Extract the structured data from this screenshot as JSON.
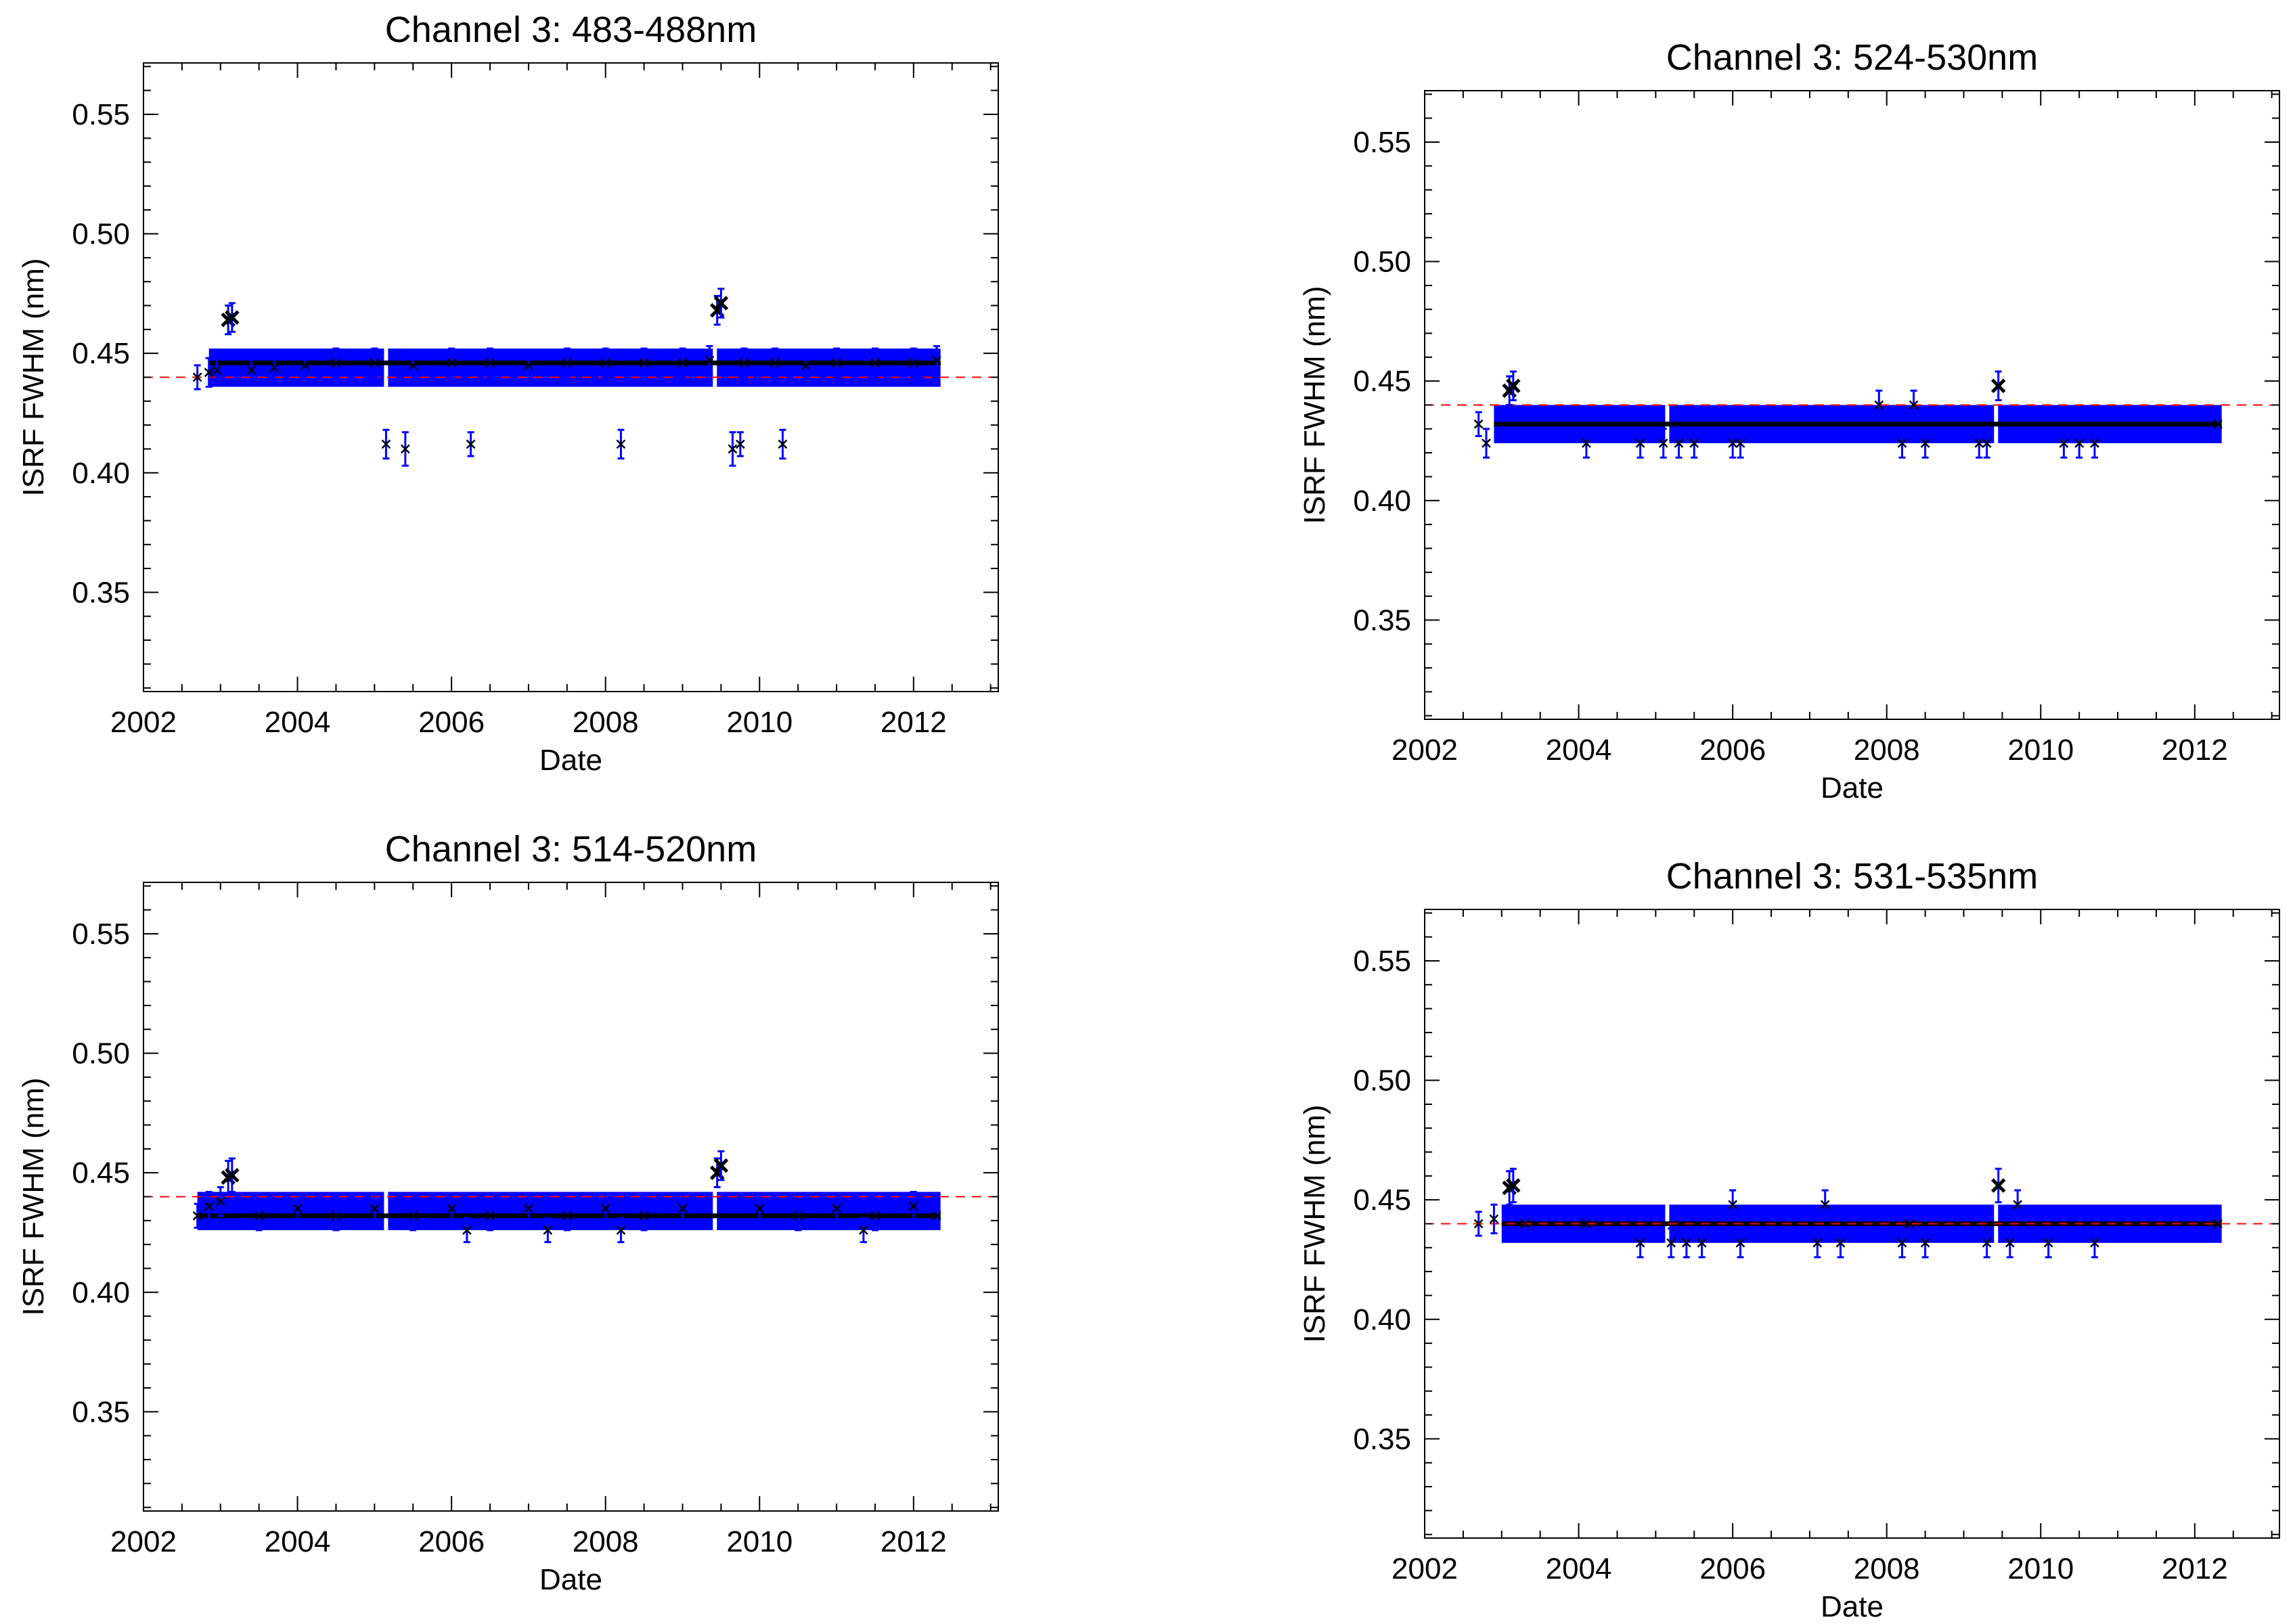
{
  "figure": {
    "colors": {
      "errorbar": "#0000ff",
      "marker": "#000000",
      "reference_line": "#ff0000",
      "frame": "#000000",
      "background": "#ffffff"
    }
  },
  "chart_data": [
    {
      "type": "scatter",
      "title": "Channel 3: 483-488nm",
      "xlabel": "Date",
      "ylabel": "ISRF FWHM (nm)",
      "xlim": [
        2002,
        2013.1
      ],
      "ylim": [
        0.3085,
        0.5715
      ],
      "xticks": [
        2002,
        2004,
        2006,
        2008,
        2010,
        2012
      ],
      "xtick_labels": [
        "2002",
        "2004",
        "2006",
        "2008",
        "2010",
        "2012"
      ],
      "yticks": [
        0.35,
        0.4,
        0.45,
        0.5,
        0.55
      ],
      "ytick_labels": [
        "0.35",
        "0.40",
        "0.45",
        "0.50",
        "0.55"
      ],
      "reference_line": 0.44,
      "band": {
        "x_start": 2002.85,
        "x_end": 2012.35,
        "y_center": 0.446,
        "y_low": 0.436,
        "y_high": 0.452
      },
      "series": [
        {
          "name": "ISRF FWHM",
          "x": [
            2002.7,
            2002.85,
            2002.95,
            2003.1,
            2003.15,
            2003.4,
            2003.7,
            2004.1,
            2004.5,
            2005.0,
            2005.5,
            2006.0,
            2006.5,
            2007.0,
            2007.5,
            2008.0,
            2008.5,
            2009.0,
            2009.35,
            2009.45,
            2009.5,
            2009.8,
            2010.2,
            2010.6,
            2011.0,
            2011.5,
            2012.0,
            2012.3,
            2005.15,
            2005.4,
            2006.25,
            2008.2,
            2009.65,
            2009.75,
            2010.3
          ],
          "y": [
            0.44,
            0.442,
            0.443,
            0.464,
            0.465,
            0.443,
            0.444,
            0.445,
            0.446,
            0.446,
            0.445,
            0.446,
            0.446,
            0.445,
            0.446,
            0.446,
            0.446,
            0.446,
            0.447,
            0.468,
            0.471,
            0.446,
            0.446,
            0.445,
            0.446,
            0.446,
            0.446,
            0.447,
            0.412,
            0.41,
            0.412,
            0.412,
            0.41,
            0.412,
            0.412
          ],
          "err": [
            0.005,
            0.006,
            0.006,
            0.006,
            0.006,
            0.006,
            0.006,
            0.006,
            0.006,
            0.006,
            0.006,
            0.006,
            0.006,
            0.006,
            0.006,
            0.006,
            0.006,
            0.006,
            0.006,
            0.006,
            0.006,
            0.006,
            0.006,
            0.006,
            0.006,
            0.006,
            0.006,
            0.006,
            0.006,
            0.007,
            0.005,
            0.006,
            0.007,
            0.005,
            0.006
          ]
        }
      ]
    },
    {
      "type": "scatter",
      "title": "Channel 3: 524-530nm",
      "xlabel": "Date",
      "ylabel": "ISRF FWHM (nm)",
      "xlim": [
        2002,
        2013.1
      ],
      "ylim": [
        0.3085,
        0.5715
      ],
      "xticks": [
        2002,
        2004,
        2006,
        2008,
        2010,
        2012
      ],
      "xtick_labels": [
        "2002",
        "2004",
        "2006",
        "2008",
        "2010",
        "2012"
      ],
      "yticks": [
        0.35,
        0.4,
        0.45,
        0.5,
        0.55
      ],
      "ytick_labels": [
        "0.35",
        "0.40",
        "0.45",
        "0.50",
        "0.55"
      ],
      "reference_line": 0.44,
      "band": {
        "x_start": 2002.9,
        "x_end": 2012.35,
        "y_center": 0.432,
        "y_low": 0.424,
        "y_high": 0.44
      },
      "series": [
        {
          "name": "ISRF FWHM",
          "x": [
            2002.7,
            2002.8,
            2003.1,
            2003.15,
            2004.1,
            2004.8,
            2005.1,
            2005.3,
            2005.5,
            2006.0,
            2006.1,
            2007.9,
            2008.2,
            2008.35,
            2008.5,
            2009.2,
            2009.3,
            2009.45,
            2010.3,
            2010.5,
            2010.7,
            2012.3
          ],
          "y": [
            0.432,
            0.424,
            0.446,
            0.448,
            0.424,
            0.424,
            0.424,
            0.424,
            0.424,
            0.424,
            0.424,
            0.44,
            0.424,
            0.44,
            0.424,
            0.424,
            0.424,
            0.448,
            0.424,
            0.424,
            0.424,
            0.432
          ],
          "err": [
            0.005,
            0.006,
            0.006,
            0.006,
            0.006,
            0.006,
            0.006,
            0.006,
            0.006,
            0.006,
            0.006,
            0.006,
            0.006,
            0.006,
            0.006,
            0.006,
            0.006,
            0.006,
            0.006,
            0.006,
            0.006,
            0.005
          ]
        }
      ]
    },
    {
      "type": "scatter",
      "title": "Channel 3: 514-520nm",
      "xlabel": "Date",
      "ylabel": "ISRF FWHM (nm)",
      "xlim": [
        2002,
        2013.1
      ],
      "ylim": [
        0.3085,
        0.5715
      ],
      "xticks": [
        2002,
        2004,
        2006,
        2008,
        2010,
        2012
      ],
      "xtick_labels": [
        "2002",
        "2004",
        "2006",
        "2008",
        "2010",
        "2012"
      ],
      "yticks": [
        0.35,
        0.4,
        0.45,
        0.5,
        0.55
      ],
      "ytick_labels": [
        "0.35",
        "0.40",
        "0.45",
        "0.50",
        "0.55"
      ],
      "reference_line": 0.44,
      "band": {
        "x_start": 2002.7,
        "x_end": 2012.35,
        "y_center": 0.432,
        "y_low": 0.426,
        "y_high": 0.442
      },
      "series": [
        {
          "name": "ISRF FWHM",
          "x": [
            2002.7,
            2002.85,
            2003.0,
            2003.1,
            2003.15,
            2003.5,
            2004.0,
            2004.5,
            2005.0,
            2005.5,
            2006.0,
            2006.5,
            2007.0,
            2007.5,
            2008.0,
            2008.5,
            2009.0,
            2009.45,
            2009.5,
            2010.0,
            2010.5,
            2011.0,
            2011.5,
            2012.0,
            2012.3,
            2006.2,
            2007.25,
            2008.2,
            2011.35
          ],
          "y": [
            0.432,
            0.436,
            0.438,
            0.448,
            0.449,
            0.432,
            0.435,
            0.432,
            0.435,
            0.432,
            0.435,
            0.432,
            0.435,
            0.432,
            0.435,
            0.432,
            0.435,
            0.45,
            0.453,
            0.435,
            0.432,
            0.435,
            0.432,
            0.436,
            0.432,
            0.426,
            0.426,
            0.426,
            0.426
          ],
          "err": [
            0.005,
            0.006,
            0.006,
            0.007,
            0.007,
            0.006,
            0.006,
            0.006,
            0.006,
            0.006,
            0.006,
            0.006,
            0.006,
            0.006,
            0.006,
            0.006,
            0.006,
            0.006,
            0.006,
            0.006,
            0.006,
            0.006,
            0.006,
            0.006,
            0.005,
            0.005,
            0.005,
            0.005,
            0.005
          ]
        }
      ]
    },
    {
      "type": "scatter",
      "title": "Channel 3: 531-535nm",
      "xlabel": "Date",
      "ylabel": "ISRF FWHM (nm)",
      "xlim": [
        2002,
        2013.1
      ],
      "ylim": [
        0.3085,
        0.5715
      ],
      "xticks": [
        2002,
        2004,
        2006,
        2008,
        2010,
        2012
      ],
      "xtick_labels": [
        "2002",
        "2004",
        "2006",
        "2008",
        "2010",
        "2012"
      ],
      "yticks": [
        0.35,
        0.4,
        0.45,
        0.5,
        0.55
      ],
      "ytick_labels": [
        "0.35",
        "0.40",
        "0.45",
        "0.50",
        "0.55"
      ],
      "reference_line": 0.44,
      "band": {
        "x_start": 2003.0,
        "x_end": 2012.35,
        "y_center": 0.44,
        "y_low": 0.432,
        "y_high": 0.448
      },
      "series": [
        {
          "name": "ISRF FWHM",
          "x": [
            2002.7,
            2002.9,
            2003.1,
            2003.15,
            2003.3,
            2004.1,
            2004.8,
            2005.2,
            2005.4,
            2005.6,
            2006.0,
            2006.1,
            2007.1,
            2007.2,
            2007.4,
            2008.2,
            2008.3,
            2008.5,
            2009.3,
            2009.45,
            2009.6,
            2009.7,
            2010.1,
            2010.7,
            2012.3
          ],
          "y": [
            0.44,
            0.442,
            0.455,
            0.456,
            0.44,
            0.44,
            0.432,
            0.432,
            0.432,
            0.432,
            0.448,
            0.432,
            0.432,
            0.448,
            0.432,
            0.432,
            0.44,
            0.432,
            0.432,
            0.456,
            0.432,
            0.448,
            0.432,
            0.432,
            0.44
          ],
          "err": [
            0.005,
            0.006,
            0.007,
            0.007,
            0.006,
            0.006,
            0.006,
            0.006,
            0.006,
            0.006,
            0.006,
            0.006,
            0.006,
            0.006,
            0.006,
            0.006,
            0.006,
            0.006,
            0.006,
            0.007,
            0.006,
            0.006,
            0.006,
            0.006,
            0.005
          ]
        }
      ]
    }
  ]
}
